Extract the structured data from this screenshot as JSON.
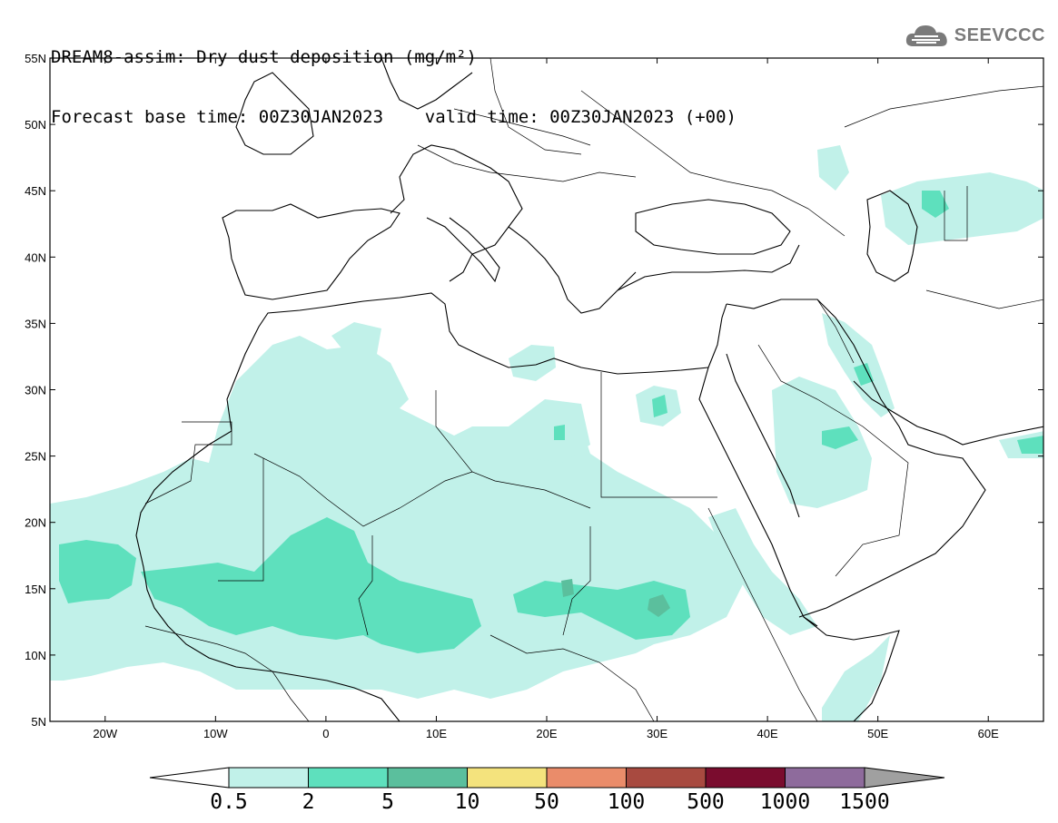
{
  "title": {
    "line1": "DREAM8-assim: Dry dust deposition (mg/m²)",
    "line2": "Forecast base time: 00Z30JAN2023    valid time: 00Z30JAN2023 (+00)"
  },
  "logo": {
    "text": "SEEVCCC",
    "icon": "cloud-icon"
  },
  "map": {
    "lon_range": [
      -25,
      65
    ],
    "lat_range": [
      5,
      55
    ],
    "lon_ticks": [
      {
        "lon": -20,
        "label": "20W"
      },
      {
        "lon": -10,
        "label": "10W"
      },
      {
        "lon": 0,
        "label": "0"
      },
      {
        "lon": 10,
        "label": "10E"
      },
      {
        "lon": 20,
        "label": "20E"
      },
      {
        "lon": 30,
        "label": "30E"
      },
      {
        "lon": 40,
        "label": "40E"
      },
      {
        "lon": 50,
        "label": "50E"
      },
      {
        "lon": 60,
        "label": "60E"
      }
    ],
    "lat_ticks": [
      {
        "lat": 5,
        "label": "5N"
      },
      {
        "lat": 10,
        "label": "10N"
      },
      {
        "lat": 15,
        "label": "15N"
      },
      {
        "lat": 20,
        "label": "20N"
      },
      {
        "lat": 25,
        "label": "25N"
      },
      {
        "lat": 30,
        "label": "30N"
      },
      {
        "lat": 35,
        "label": "35N"
      },
      {
        "lat": 40,
        "label": "40N"
      },
      {
        "lat": 45,
        "label": "45N"
      },
      {
        "lat": 50,
        "label": "50N"
      },
      {
        "lat": 55,
        "label": "55N"
      }
    ]
  },
  "colorbar": {
    "colors": [
      "#c1f1e9",
      "#5ee0bd",
      "#5bbf9d",
      "#f4e37d",
      "#ea8c6a",
      "#a84a40",
      "#7a0c2e",
      "#8e6b9c"
    ],
    "low_color": "#ffffff",
    "high_color": "#a0a0a0",
    "labels": [
      "0.5",
      "2",
      "5",
      "10",
      "50",
      "100",
      "500",
      "1000",
      "1500"
    ]
  },
  "dust_levels": {
    "level1": "#c1f1e9",
    "level2": "#5ee0bd",
    "level3": "#5bbf9d"
  }
}
